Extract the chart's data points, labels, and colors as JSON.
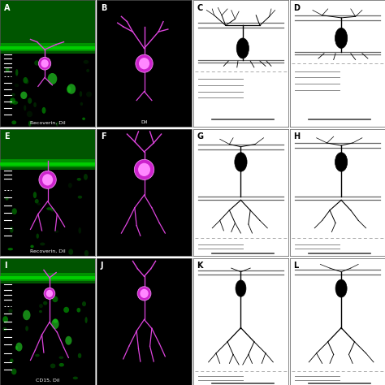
{
  "figsize": [
    4.74,
    4.74
  ],
  "dpi": 100,
  "panel_labels": [
    "A",
    "B",
    "C",
    "D",
    "E",
    "F",
    "G",
    "H",
    "I",
    "J",
    "K",
    "L"
  ],
  "soma_color": "#000000",
  "line_gray": "#888888",
  "line_dark": "#555555",
  "dash_gray": "#aaaaaa",
  "magenta_soma": "#cc22cc",
  "magenta_bright": "#ee55ee",
  "magenta_inner": "#ff88ff",
  "green_dark": "#004400",
  "green_mid": "#006600",
  "green_bright": "#00cc00",
  "green_spot": "#33ff33",
  "white": "#ffffff",
  "black": "#000000"
}
